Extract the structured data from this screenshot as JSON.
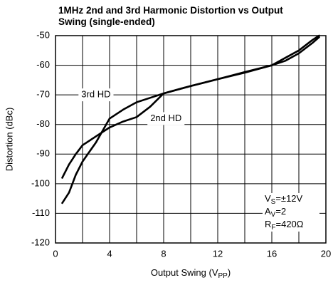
{
  "chart_data": {
    "type": "line",
    "title": [
      "1MHz 2nd and 3rd Harmonic Distortion vs Output",
      "Swing (single-ended)"
    ],
    "xlabel": [
      "Output Swing (V",
      "PP",
      ")"
    ],
    "ylabel": "Distortion (dBc)",
    "x": [
      0.5,
      1,
      1.5,
      2,
      3,
      4,
      5,
      6,
      7,
      8,
      10,
      12,
      14,
      16,
      17,
      18,
      19,
      19.5
    ],
    "series": [
      {
        "name": "3rd HD",
        "color": "#000000",
        "values": [
          -98,
          -93.5,
          -90,
          -87,
          -84,
          -81,
          -79,
          -77.5,
          -74,
          -69.5,
          -67,
          -64.7,
          -62.3,
          -60,
          -57.5,
          -55,
          -51.5,
          -50
        ]
      },
      {
        "name": "2nd HD",
        "color": "#000000",
        "values": [
          -106.5,
          -103,
          -97,
          -92.5,
          -86,
          -78,
          -75,
          -72.5,
          -71,
          -69.5,
          -67,
          -64.7,
          -62.5,
          -60,
          -58.5,
          -56,
          -52.5,
          -50.5
        ]
      }
    ],
    "xlim": [
      0,
      20
    ],
    "xticks": [
      0,
      4,
      8,
      12,
      16,
      20
    ],
    "xminor_grid": [
      2,
      6,
      10,
      14,
      18
    ],
    "ylim": [
      -120,
      -50
    ],
    "yticks": [
      -120,
      -110,
      -100,
      -90,
      -80,
      -70,
      -60,
      -50
    ],
    "grid": true,
    "conditions": [
      [
        "V",
        "S",
        "=±12V"
      ],
      [
        "A",
        "V",
        "=2"
      ],
      [
        "R",
        "F",
        "=420Ω"
      ]
    ]
  }
}
